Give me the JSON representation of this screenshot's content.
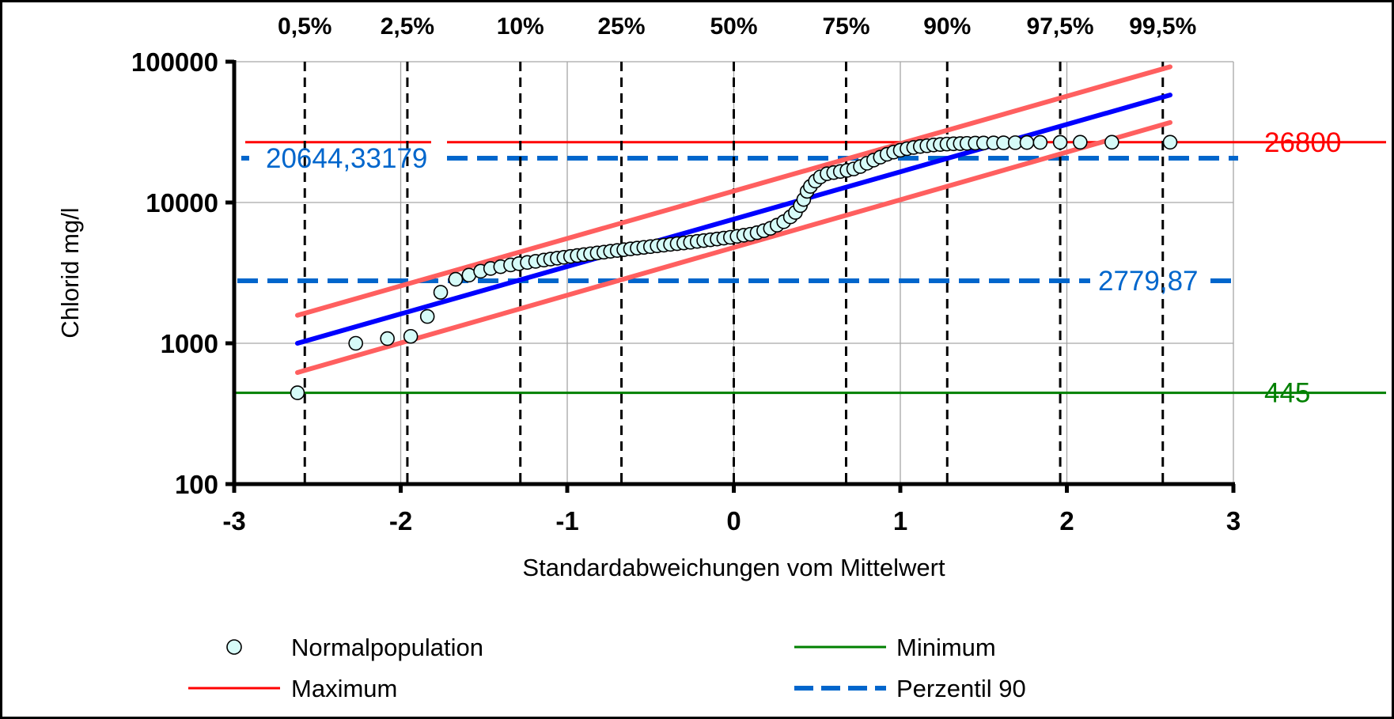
{
  "chart_data": {
    "type": "scatter",
    "title": "",
    "xlabel": "Standardabweichungen vom Mittelwert",
    "ylabel": "Chlorid mg/l",
    "xlim": [
      -3,
      3
    ],
    "ylim": [
      100,
      100000
    ],
    "yscale": "log",
    "grid": true,
    "x_ticks": [
      "-3",
      "-2",
      "-1",
      "0",
      "1",
      "2",
      "3"
    ],
    "y_ticks": [
      "100",
      "1000",
      "10000",
      "100000"
    ],
    "percentiles": [
      {
        "label": "0,5%",
        "z": -2.576
      },
      {
        "label": "2,5%",
        "z": -1.96
      },
      {
        "label": "10%",
        "z": -1.2816
      },
      {
        "label": "25%",
        "z": -0.6745
      },
      {
        "label": "50%",
        "z": 0
      },
      {
        "label": "75%",
        "z": 0.6745
      },
      {
        "label": "90%",
        "z": 1.2816
      },
      {
        "label": "97,5%",
        "z": 1.96
      },
      {
        "label": "99,5%",
        "z": 2.576
      }
    ],
    "reference_lines": {
      "maximum": {
        "value": 26800,
        "label": "26800",
        "color": "#ff0000"
      },
      "minimum": {
        "value": 445,
        "label": "445",
        "color": "#008000"
      },
      "perzentil_upper": {
        "value": 20644.33179,
        "label": "20644,33179",
        "color": "#0066cc"
      },
      "perzentil_lower": {
        "value": 2779.87,
        "label": "2779,87",
        "color": "#0066cc"
      }
    },
    "fit_line": {
      "color": "#0000ff",
      "x": [
        -2.62,
        2.62
      ],
      "y": [
        1000,
        58000
      ]
    },
    "upper_band": {
      "color": "#ff5f5f",
      "x": [
        -2.62,
        2.62
      ],
      "y": [
        1580,
        92000
      ]
    },
    "lower_band": {
      "color": "#ff5f5f",
      "x": [
        -2.62,
        2.62
      ],
      "y": [
        620,
        37000
      ]
    },
    "series": [
      {
        "name": "Normalpopulation",
        "marker_color": "#d6fbf8",
        "x": [
          -2.62,
          -2.27,
          -2.08,
          -1.94,
          -1.84,
          -1.76,
          -1.67,
          -1.59,
          -1.52,
          -1.46,
          -1.4,
          -1.34,
          -1.29,
          -1.24,
          -1.19,
          -1.14,
          -1.1,
          -1.06,
          -1.02,
          -0.98,
          -0.94,
          -0.9,
          -0.86,
          -0.82,
          -0.78,
          -0.74,
          -0.7,
          -0.66,
          -0.62,
          -0.58,
          -0.54,
          -0.5,
          -0.46,
          -0.42,
          -0.38,
          -0.34,
          -0.3,
          -0.26,
          -0.22,
          -0.18,
          -0.14,
          -0.1,
          -0.06,
          -0.02,
          0.02,
          0.06,
          0.1,
          0.14,
          0.18,
          0.22,
          0.26,
          0.3,
          0.34,
          0.37,
          0.4,
          0.42,
          0.44,
          0.46,
          0.49,
          0.52,
          0.56,
          0.6,
          0.64,
          0.68,
          0.72,
          0.76,
          0.8,
          0.84,
          0.88,
          0.92,
          0.96,
          1.0,
          1.04,
          1.08,
          1.12,
          1.16,
          1.2,
          1.24,
          1.28,
          1.32,
          1.36,
          1.4,
          1.45,
          1.5,
          1.56,
          1.62,
          1.69,
          1.76,
          1.84,
          1.96,
          2.08,
          2.27,
          2.62
        ],
        "y": [
          445,
          1000,
          1080,
          1120,
          1550,
          2300,
          2850,
          3050,
          3250,
          3400,
          3500,
          3600,
          3680,
          3750,
          3820,
          3900,
          3960,
          4020,
          4080,
          4140,
          4200,
          4260,
          4320,
          4380,
          4440,
          4500,
          4560,
          4620,
          4680,
          4740,
          4800,
          4860,
          4920,
          4980,
          5040,
          5100,
          5160,
          5220,
          5290,
          5360,
          5430,
          5500,
          5580,
          5660,
          5750,
          5850,
          5950,
          6100,
          6300,
          6550,
          6900,
          7300,
          7900,
          8500,
          9500,
          10500,
          12000,
          13000,
          14200,
          15200,
          16000,
          16300,
          16600,
          16900,
          17300,
          18000,
          19000,
          20000,
          21000,
          22000,
          22800,
          23500,
          24100,
          24600,
          25000,
          25300,
          25600,
          25800,
          26000,
          26100,
          26200,
          26300,
          26400,
          26450,
          26500,
          26550,
          26600,
          26650,
          26700,
          26750,
          26800,
          26800,
          26800
        ]
      },
      {
        "name": "Minimum",
        "color": "#008000",
        "type": "line"
      },
      {
        "name": "Maximum",
        "color": "#ff0000",
        "type": "line"
      },
      {
        "name": "Perzentil 90",
        "color": "#0066cc",
        "type": "dashed-line"
      }
    ],
    "legend": [
      "Normalpopulation",
      "Minimum",
      "Maximum",
      "Perzentil 90"
    ],
    "legend_position": "bottom"
  }
}
